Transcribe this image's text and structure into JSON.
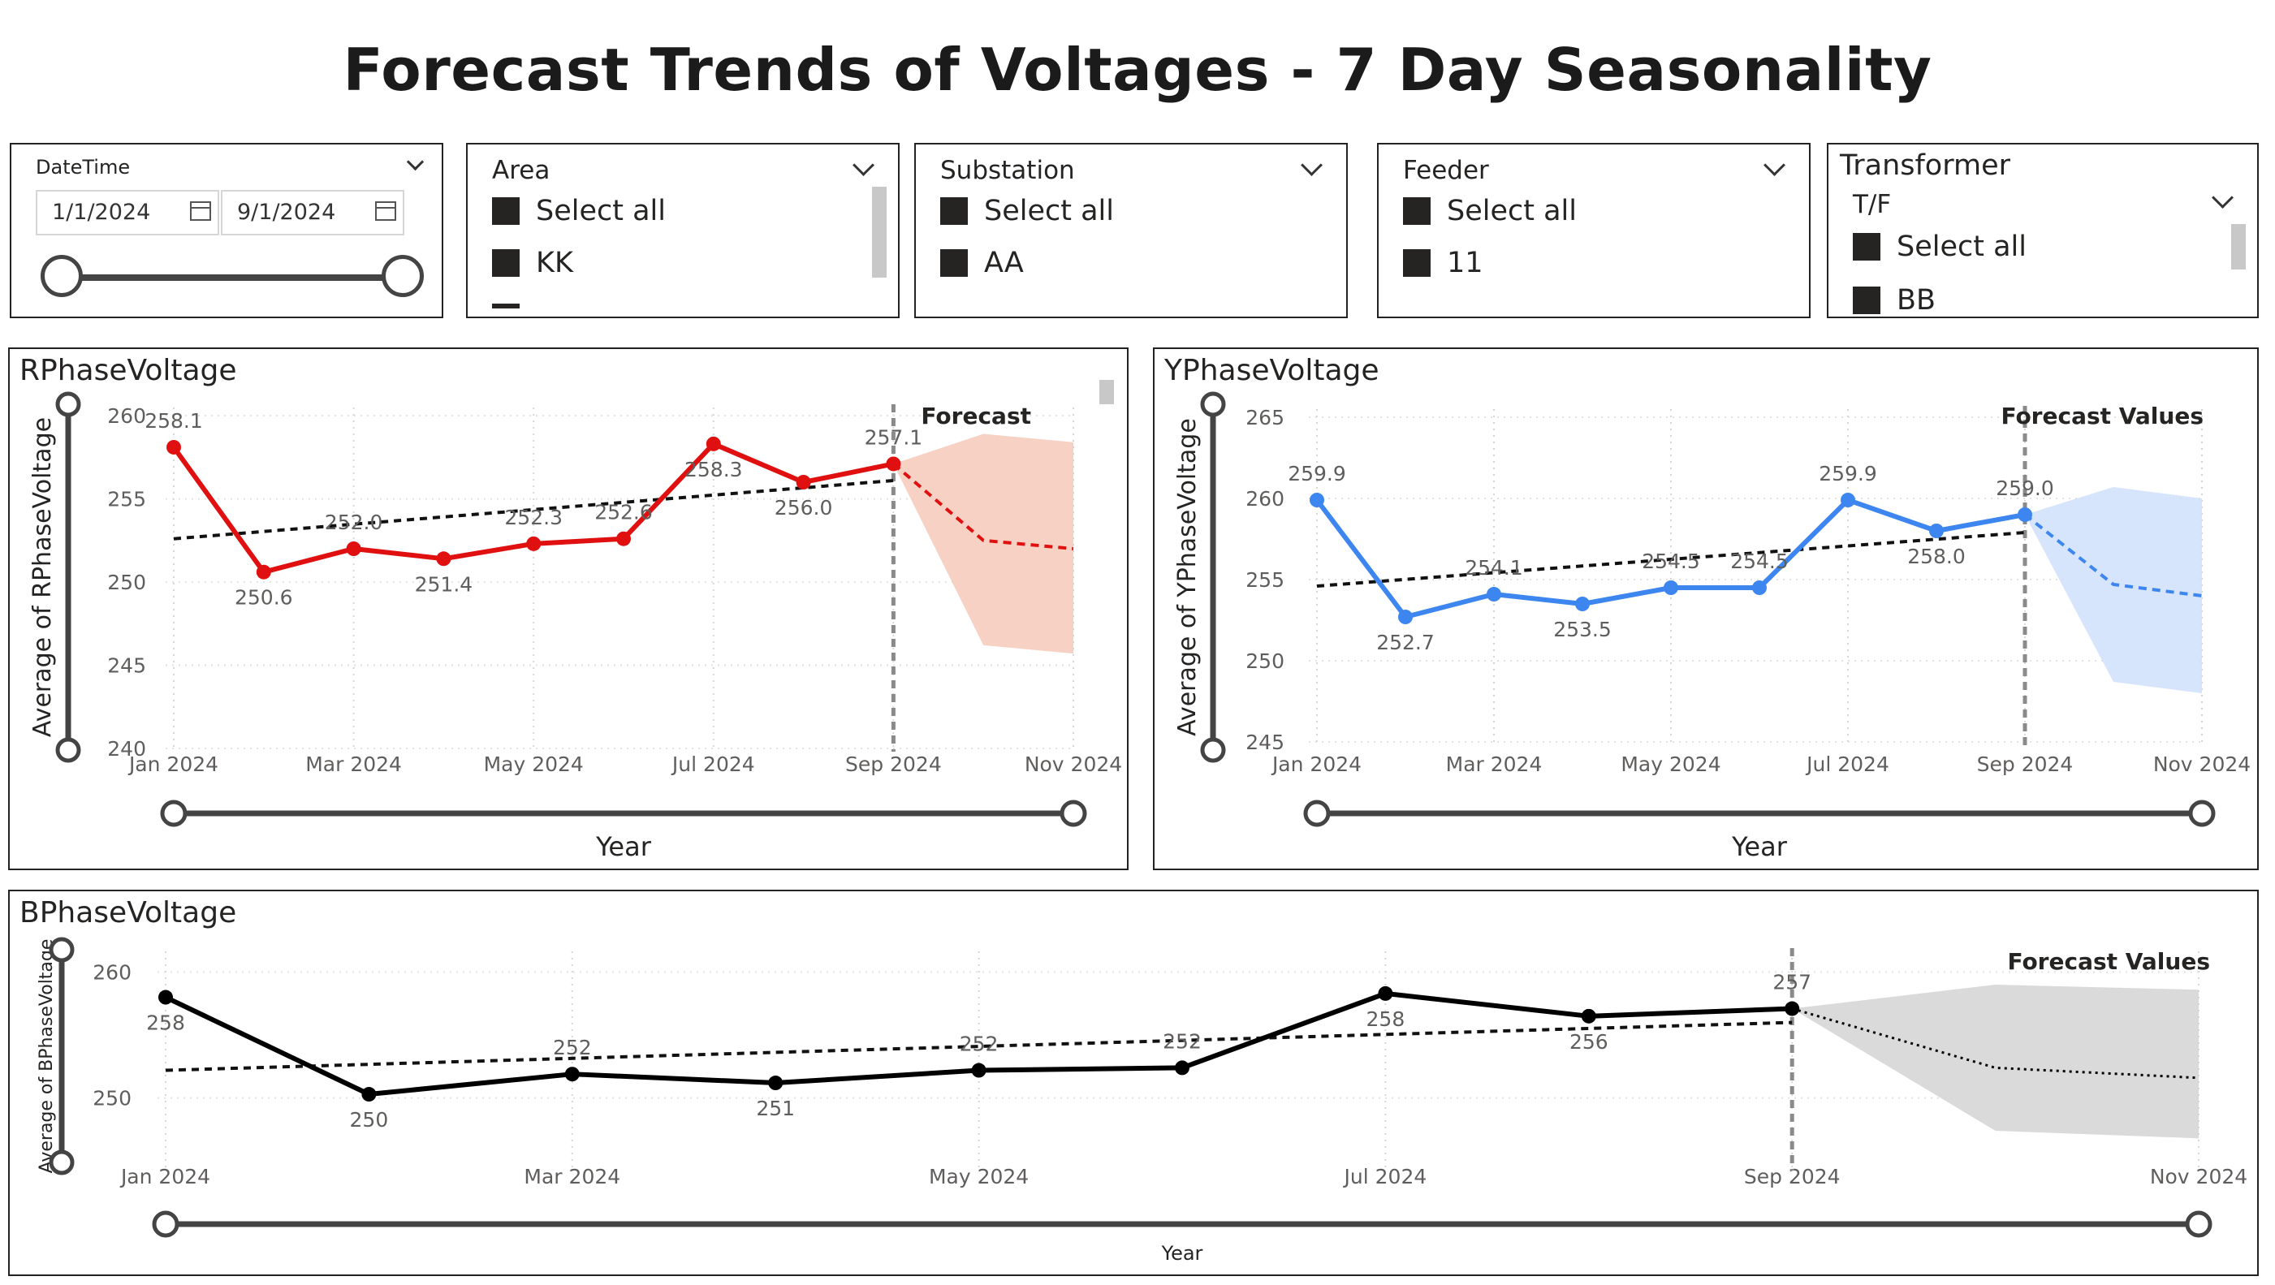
{
  "page": {
    "title": "Forecast Trends of Voltages  - 7 Day Seasonality"
  },
  "slicers": {
    "datetime": {
      "label": "DateTime",
      "start": "1/1/2024",
      "end": "9/1/2024"
    },
    "area": {
      "label": "Area",
      "items": [
        "Select all",
        "KK"
      ]
    },
    "substation": {
      "label": "Substation",
      "items": [
        "Select all",
        "AA"
      ]
    },
    "feeder": {
      "label": "Feeder",
      "items": [
        "Select all",
        "11"
      ]
    },
    "transformer": {
      "label": "Transformer",
      "sublabel": "T/F",
      "items": [
        "Select all",
        "BB"
      ]
    }
  },
  "icons": [
    "calendar-icon",
    "chevron-down-icon",
    "checkbox-icon",
    "slider-handle-icon"
  ],
  "chart_data": [
    {
      "id": "r",
      "type": "line",
      "title": "RPhaseVoltage",
      "xlabel": "Year",
      "ylabel": "Average of RPhaseVoltage",
      "forecast_label": "Forecast",
      "color": "#e01010",
      "band_color": "#f5c9ba",
      "x": [
        "2024-01",
        "2024-02",
        "2024-03",
        "2024-04",
        "2024-05",
        "2024-06",
        "2024-07",
        "2024-08",
        "2024-09"
      ],
      "values": [
        258.1,
        250.6,
        252.0,
        251.4,
        252.3,
        252.6,
        258.3,
        256.0,
        257.1
      ],
      "data_labels": [
        "258.1",
        "250.6",
        "252.0",
        "251.4",
        "252.3",
        "252.6",
        "258.3",
        "256.0",
        "257.1"
      ],
      "trend": [
        252.6,
        256.1
      ],
      "forecast": {
        "x": [
          "2024-09",
          "2024-10",
          "2024-11"
        ],
        "values": [
          257.1,
          252.5,
          252.0
        ],
        "upper": [
          257.1,
          258.9,
          258.4
        ],
        "lower": [
          257.1,
          246.2,
          245.7
        ]
      },
      "xticks": [
        "Jan 2024",
        "Mar 2024",
        "May 2024",
        "Jul 2024",
        "Sep 2024",
        "Nov 2024"
      ],
      "yticks": [
        240,
        245,
        250,
        255,
        260
      ],
      "ylim": [
        240,
        260
      ],
      "grid": true
    },
    {
      "id": "y",
      "type": "line",
      "title": "YPhaseVoltage",
      "xlabel": "Year",
      "ylabel": "Average of YPhaseVoltage",
      "forecast_label": "Forecast Values",
      "color": "#3d86f0",
      "band_color": "#cfe0fb",
      "x": [
        "2024-01",
        "2024-02",
        "2024-03",
        "2024-04",
        "2024-05",
        "2024-06",
        "2024-07",
        "2024-08",
        "2024-09"
      ],
      "values": [
        259.9,
        252.7,
        254.1,
        253.5,
        254.5,
        254.5,
        259.9,
        258.0,
        259.0
      ],
      "data_labels": [
        "259.9",
        "252.7",
        "254.1",
        "253.5",
        "254.5",
        "254.5",
        "259.9",
        "258.0",
        "259.0"
      ],
      "trend": [
        254.6,
        257.9
      ],
      "forecast": {
        "x": [
          "2024-09",
          "2024-10",
          "2024-11"
        ],
        "values": [
          259.0,
          254.7,
          254.0
        ],
        "upper": [
          259.0,
          260.7,
          260.0
        ],
        "lower": [
          259.0,
          248.7,
          248.0
        ]
      },
      "xticks": [
        "Jan 2024",
        "Mar 2024",
        "May 2024",
        "Jul 2024",
        "Sep 2024",
        "Nov 2024"
      ],
      "yticks": [
        245,
        250,
        255,
        260,
        265
      ],
      "ylim": [
        245,
        265
      ],
      "grid": true
    },
    {
      "id": "b",
      "type": "line",
      "title": "BPhaseVoltage",
      "xlabel": "Year",
      "ylabel": "Average of BPhaseVoltage",
      "forecast_label": "Forecast Values",
      "color": "#000000",
      "band_color": "#d4d4d4",
      "x": [
        "2024-01",
        "2024-02",
        "2024-03",
        "2024-04",
        "2024-05",
        "2024-06",
        "2024-07",
        "2024-08",
        "2024-09"
      ],
      "values": [
        258,
        250.3,
        251.9,
        251.2,
        252.2,
        252.4,
        258.3,
        256.5,
        257.1
      ],
      "data_labels": [
        "258",
        "250",
        "252",
        "251",
        "252",
        "252",
        "258",
        "256",
        "257"
      ],
      "trend": [
        252.2,
        256.0
      ],
      "forecast": {
        "x": [
          "2024-09",
          "2024-10",
          "2024-11"
        ],
        "values": [
          257.1,
          252.4,
          251.6
        ],
        "upper": [
          257.1,
          259.0,
          258.6
        ],
        "lower": [
          257.1,
          247.4,
          246.8
        ]
      },
      "xticks": [
        "Jan 2024",
        "Mar 2024",
        "May 2024",
        "Jul 2024",
        "Sep 2024",
        "Nov 2024"
      ],
      "yticks": [
        250,
        260
      ],
      "ylim": [
        244.5,
        261
      ],
      "grid": true
    }
  ]
}
